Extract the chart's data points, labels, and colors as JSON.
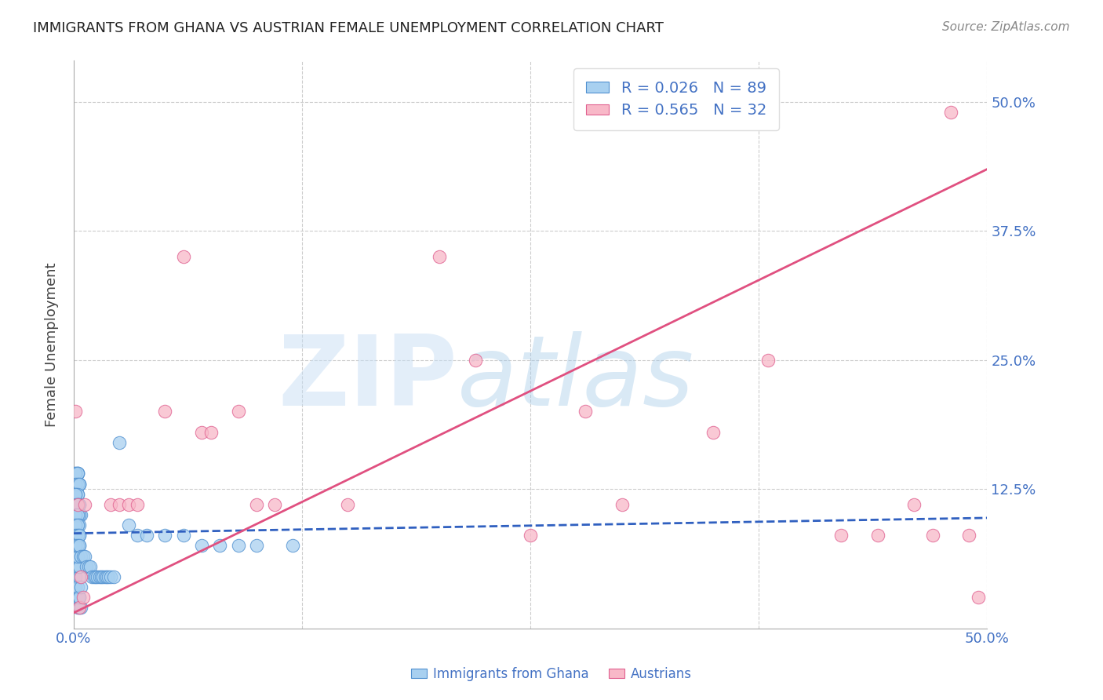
{
  "title": "IMMIGRANTS FROM GHANA VS AUSTRIAN FEMALE UNEMPLOYMENT CORRELATION CHART",
  "source": "Source: ZipAtlas.com",
  "ylabel": "Female Unemployment",
  "watermark_zip": "ZIP",
  "watermark_atlas": "atlas",
  "xlim": [
    0.0,
    0.5
  ],
  "ylim": [
    -0.01,
    0.54
  ],
  "blue_R": "0.026",
  "blue_N": "89",
  "pink_R": "0.565",
  "pink_N": "32",
  "blue_fill": "#a8d0f0",
  "pink_fill": "#f8b8c8",
  "blue_edge": "#5090d0",
  "pink_edge": "#e06090",
  "blue_line_color": "#3060c0",
  "pink_line_color": "#e05080",
  "blue_scatter_x": [
    0.001,
    0.002,
    0.001,
    0.003,
    0.002,
    0.001,
    0.003,
    0.002,
    0.004,
    0.003,
    0.002,
    0.001,
    0.003,
    0.002,
    0.004,
    0.003,
    0.002,
    0.001,
    0.003,
    0.002,
    0.001,
    0.002,
    0.003,
    0.001,
    0.002,
    0.003,
    0.001,
    0.002,
    0.003,
    0.004,
    0.001,
    0.002,
    0.003,
    0.001,
    0.002,
    0.003,
    0.001,
    0.002,
    0.001,
    0.002,
    0.003,
    0.001,
    0.002,
    0.001,
    0.003,
    0.002,
    0.001,
    0.002,
    0.003,
    0.001,
    0.002,
    0.003,
    0.001,
    0.002,
    0.001,
    0.002,
    0.003,
    0.001,
    0.002,
    0.003,
    0.004,
    0.005,
    0.006,
    0.007,
    0.008,
    0.009,
    0.01,
    0.011,
    0.012,
    0.013,
    0.014,
    0.015,
    0.016,
    0.017,
    0.018,
    0.019,
    0.02,
    0.022,
    0.025,
    0.03,
    0.035,
    0.04,
    0.05,
    0.06,
    0.07,
    0.08,
    0.09,
    0.1,
    0.12
  ],
  "blue_scatter_y": [
    0.02,
    0.01,
    0.03,
    0.01,
    0.02,
    0.04,
    0.02,
    0.03,
    0.01,
    0.02,
    0.05,
    0.06,
    0.04,
    0.07,
    0.03,
    0.05,
    0.06,
    0.08,
    0.07,
    0.09,
    0.1,
    0.09,
    0.08,
    0.12,
    0.11,
    0.1,
    0.13,
    0.12,
    0.11,
    0.1,
    0.13,
    0.14,
    0.13,
    0.14,
    0.14,
    0.13,
    0.14,
    0.14,
    0.13,
    0.13,
    0.13,
    0.12,
    0.12,
    0.12,
    0.11,
    0.11,
    0.11,
    0.11,
    0.1,
    0.1,
    0.1,
    0.09,
    0.09,
    0.09,
    0.08,
    0.08,
    0.08,
    0.07,
    0.07,
    0.07,
    0.06,
    0.06,
    0.06,
    0.05,
    0.05,
    0.05,
    0.04,
    0.04,
    0.04,
    0.04,
    0.04,
    0.04,
    0.04,
    0.04,
    0.04,
    0.04,
    0.04,
    0.04,
    0.17,
    0.09,
    0.08,
    0.08,
    0.08,
    0.08,
    0.07,
    0.07,
    0.07,
    0.07,
    0.07
  ],
  "pink_scatter_x": [
    0.001,
    0.002,
    0.003,
    0.004,
    0.005,
    0.006,
    0.02,
    0.025,
    0.03,
    0.035,
    0.05,
    0.06,
    0.07,
    0.075,
    0.09,
    0.1,
    0.11,
    0.15,
    0.2,
    0.22,
    0.25,
    0.28,
    0.3,
    0.35,
    0.38,
    0.42,
    0.44,
    0.46,
    0.47,
    0.48,
    0.49,
    0.495
  ],
  "pink_scatter_y": [
    0.2,
    0.11,
    0.01,
    0.04,
    0.02,
    0.11,
    0.11,
    0.11,
    0.11,
    0.11,
    0.2,
    0.35,
    0.18,
    0.18,
    0.2,
    0.11,
    0.11,
    0.11,
    0.35,
    0.25,
    0.08,
    0.2,
    0.11,
    0.18,
    0.25,
    0.08,
    0.08,
    0.11,
    0.08,
    0.49,
    0.08,
    0.02
  ],
  "blue_line_x0": 0.0,
  "blue_line_x1": 0.5,
  "blue_line_y0": 0.082,
  "blue_line_y1": 0.097,
  "pink_line_x0": 0.0,
  "pink_line_x1": 0.5,
  "pink_line_y0": 0.005,
  "pink_line_y1": 0.435,
  "grid_color": "#cccccc",
  "title_color": "#222222",
  "tick_label_color": "#4472C4",
  "right_y_labels": {
    "0.50": "50.0%",
    "0.375": "37.5%",
    "0.25": "25.0%",
    "0.125": "12.5%"
  },
  "xtick_positions": [
    0.0,
    0.125,
    0.25,
    0.375,
    0.5
  ],
  "xtick_labels": [
    "0.0%",
    "",
    "",
    "",
    "50.0%"
  ]
}
